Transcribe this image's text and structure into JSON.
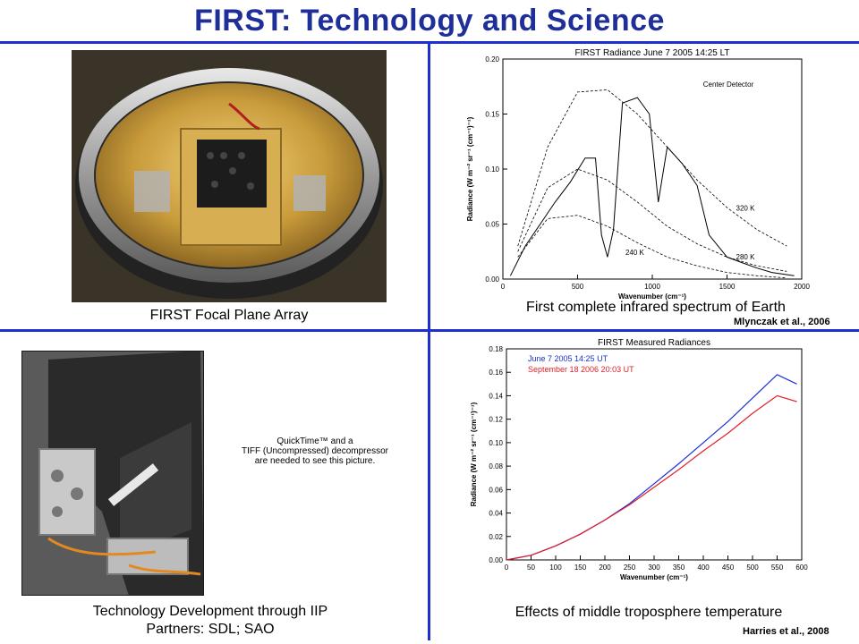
{
  "title": "FIRST: Technology and Science",
  "top_left": {
    "caption": "FIRST Focal Plane Array"
  },
  "top_right": {
    "caption": "First complete infrared spectrum of Earth",
    "citation": "Mlynczak et al., 2006"
  },
  "bottom_left": {
    "caption_line1": "Technology Development through IIP",
    "caption_line2": "Partners: SDL; SAO",
    "placeholder_line1": "QuickTime™ and a",
    "placeholder_line2": "TIFF (Uncompressed) decompressor",
    "placeholder_line3": "are needed to see this picture."
  },
  "bottom_right": {
    "caption": "Effects of middle troposphere temperature",
    "citation": "Harries et al., 2008"
  },
  "colors": {
    "title": "#1f2f9a",
    "divider": "#1f2fcf",
    "series_june": "#1a2fd6",
    "series_sept": "#e0202a"
  },
  "chart_data": [
    {
      "type": "line",
      "title": "FIRST Radiance June 7 2005 14:25 LT",
      "xlabel": "Wavenumber (cm⁻¹)",
      "ylabel": "Radiance (W m⁻² sr⁻¹ (cm⁻¹)⁻¹)",
      "xlim": [
        0,
        2000
      ],
      "ylim": [
        0.0,
        0.2
      ],
      "xticks": [
        0,
        500,
        1000,
        1500,
        2000
      ],
      "yticks": [
        "0.00",
        "0.05",
        "0.10",
        "0.15",
        "0.20"
      ],
      "annotations": [
        "Center Detector",
        "320 K",
        "280 K",
        "240 K"
      ],
      "series": [
        {
          "x": [
            100,
            300,
            500,
            700,
            900,
            1100,
            1300,
            1500,
            1700,
            1900
          ],
          "y": [
            0.03,
            0.12,
            0.17,
            0.172,
            0.15,
            0.12,
            0.09,
            0.065,
            0.045,
            0.03
          ]
        },
        {
          "x": [
            100,
            300,
            500,
            700,
            900,
            1100,
            1300,
            1500,
            1700,
            1900
          ],
          "y": [
            0.025,
            0.083,
            0.1,
            0.09,
            0.07,
            0.048,
            0.032,
            0.02,
            0.012,
            0.007
          ]
        },
        {
          "x": [
            100,
            300,
            500,
            700,
            900,
            1100,
            1300,
            1500,
            1700,
            1900
          ],
          "y": [
            0.02,
            0.055,
            0.058,
            0.048,
            0.033,
            0.02,
            0.012,
            0.006,
            0.003,
            0.001
          ]
        },
        {
          "x": [
            50,
            150,
            250,
            350,
            450,
            550,
            620,
            660,
            700,
            740,
            800,
            900,
            980,
            1040,
            1100,
            1200,
            1300,
            1380,
            1440,
            1500,
            1600,
            1700,
            1800,
            1950
          ],
          "y": [
            0.003,
            0.03,
            0.05,
            0.07,
            0.088,
            0.11,
            0.11,
            0.04,
            0.02,
            0.045,
            0.16,
            0.165,
            0.15,
            0.07,
            0.12,
            0.105,
            0.085,
            0.04,
            0.03,
            0.02,
            0.015,
            0.01,
            0.006,
            0.003
          ]
        }
      ]
    },
    {
      "type": "line",
      "title": "FIRST Measured Radiances",
      "xlabel": "Wavenumber (cm⁻¹)",
      "ylabel": "Radiance (W m⁻² sr⁻¹ (cm⁻¹)⁻¹)",
      "xlim": [
        0,
        600
      ],
      "ylim": [
        0.0,
        0.18
      ],
      "xticks": [
        0,
        50,
        100,
        150,
        200,
        250,
        300,
        350,
        400,
        450,
        500,
        550,
        600
      ],
      "yticks": [
        "0.00",
        "0.02",
        "0.04",
        "0.06",
        "0.08",
        "0.10",
        "0.12",
        "0.14",
        "0.16",
        "0.18"
      ],
      "series": [
        {
          "name": "June 7 2005 14:25 UT",
          "x": [
            0,
            50,
            100,
            150,
            200,
            250,
            300,
            350,
            400,
            450,
            500,
            550,
            590
          ],
          "y": [
            0.0,
            0.004,
            0.012,
            0.022,
            0.034,
            0.048,
            0.065,
            0.082,
            0.1,
            0.118,
            0.138,
            0.158,
            0.15
          ]
        },
        {
          "name": "September 18 2006 20:03 UT",
          "x": [
            0,
            50,
            100,
            150,
            200,
            250,
            300,
            350,
            400,
            450,
            500,
            550,
            590
          ],
          "y": [
            0.0,
            0.004,
            0.012,
            0.022,
            0.034,
            0.047,
            0.062,
            0.077,
            0.093,
            0.108,
            0.125,
            0.14,
            0.135
          ]
        }
      ]
    }
  ]
}
